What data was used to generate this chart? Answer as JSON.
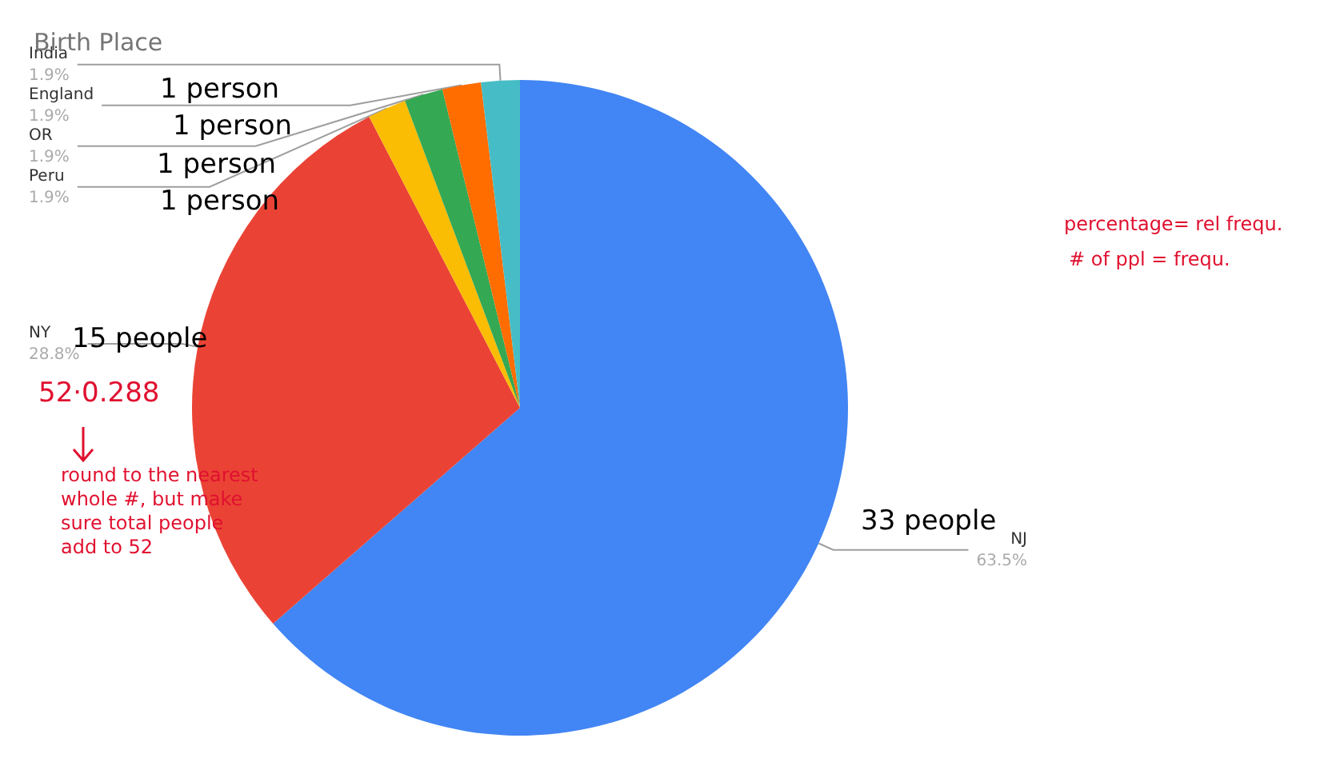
{
  "chart_data": {
    "type": "pie",
    "title": "Birth Place",
    "categories": [
      "NJ",
      "NY",
      "Peru",
      "OR",
      "England",
      "India"
    ],
    "values": [
      63.5,
      28.8,
      1.9,
      1.9,
      1.9,
      1.9
    ],
    "value_labels": [
      "63.5%",
      "28.8%",
      "1.9%",
      "1.9%",
      "1.9%",
      "1.9%"
    ],
    "colors": [
      "#4285f4",
      "#ea4335",
      "#fbbc04",
      "#34a853",
      "#ff6d01",
      "#46bdc6"
    ],
    "annotations": [
      "1 person",
      "1 person",
      "1 person",
      "1 person",
      "15 people",
      "33 people",
      "percentage= rel frequ.",
      "# of ppl = frequ.",
      "52·0.288",
      "round to the nearest whole #, but make sure total people add to 52"
    ]
  }
}
